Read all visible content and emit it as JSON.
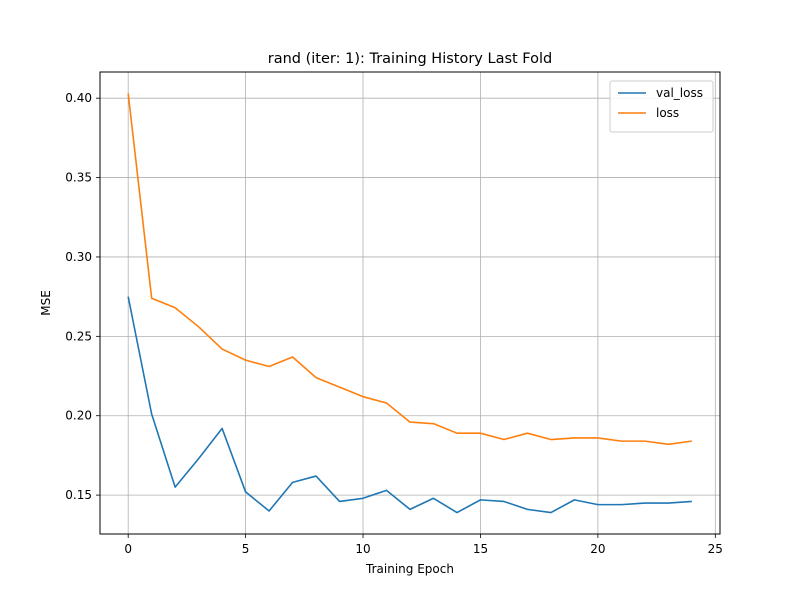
{
  "chart_data": {
    "type": "line",
    "title": "rand (iter: 1): Training History Last Fold",
    "xlabel": "Training Epoch",
    "ylabel": "MSE",
    "xlim": [
      -1.2,
      25.2
    ],
    "ylim": [
      0.1255,
      0.4165
    ],
    "xticks": [
      0,
      5,
      10,
      15,
      20,
      25
    ],
    "xtick_labels": [
      "0",
      "5",
      "10",
      "15",
      "20",
      "25"
    ],
    "yticks": [
      0.15,
      0.2,
      0.25,
      0.3,
      0.35,
      0.4
    ],
    "ytick_labels": [
      "0.15",
      "0.20",
      "0.25",
      "0.30",
      "0.35",
      "0.40"
    ],
    "grid": true,
    "legend_position": "top-right",
    "x": [
      0,
      1,
      2,
      3,
      4,
      5,
      6,
      7,
      8,
      9,
      10,
      11,
      12,
      13,
      14,
      15,
      16,
      17,
      18,
      19,
      20,
      21,
      22,
      23,
      24
    ],
    "series": [
      {
        "name": "val_loss",
        "color": "#1f77b4",
        "values": [
          0.275,
          0.201,
          0.155,
          0.173,
          0.192,
          0.152,
          0.14,
          0.158,
          0.162,
          0.146,
          0.148,
          0.153,
          0.141,
          0.148,
          0.139,
          0.147,
          0.146,
          0.141,
          0.139,
          0.147,
          0.144,
          0.144,
          0.145,
          0.145,
          0.146
        ]
      },
      {
        "name": "loss",
        "color": "#ff7f0e",
        "values": [
          0.403,
          0.274,
          0.268,
          0.256,
          0.242,
          0.235,
          0.231,
          0.237,
          0.224,
          0.218,
          0.212,
          0.208,
          0.196,
          0.195,
          0.189,
          0.189,
          0.185,
          0.189,
          0.185,
          0.186,
          0.186,
          0.184,
          0.184,
          0.182,
          0.184
        ]
      }
    ]
  }
}
